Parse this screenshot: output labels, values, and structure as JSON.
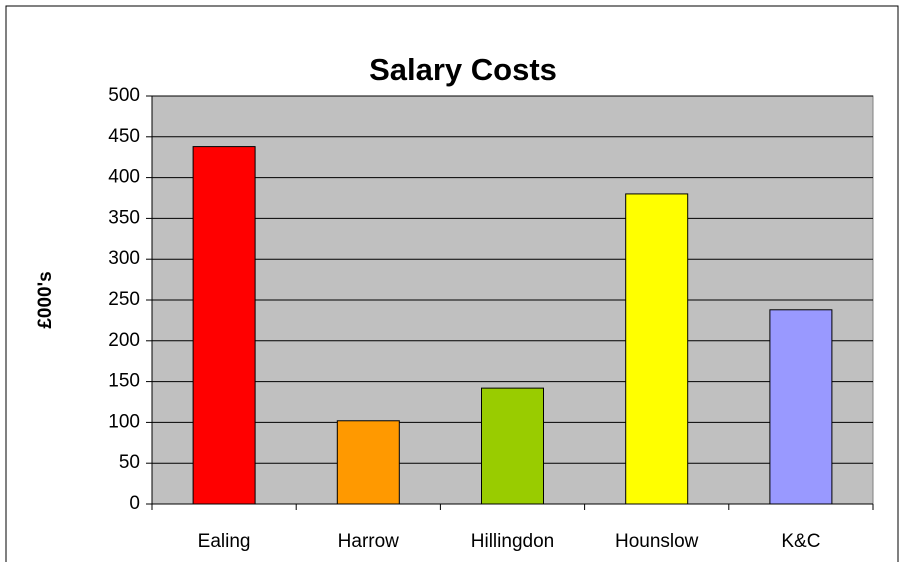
{
  "chart_data": {
    "type": "bar",
    "title": "Salary Costs",
    "y_label": "£000's",
    "categories": [
      "Ealing",
      "Harrow",
      "Hillingdon",
      "Hounslow",
      "K&C"
    ],
    "values": [
      438,
      102,
      142,
      380,
      238
    ],
    "colors": [
      "#ff0000",
      "#ff9900",
      "#99cc00",
      "#ffff00",
      "#9999ff"
    ],
    "ylim": [
      0,
      500
    ],
    "yticks": [
      0,
      50,
      100,
      150,
      200,
      250,
      300,
      350,
      400,
      450,
      500
    ],
    "grid": true,
    "plot_background": "#c0c0c0"
  }
}
